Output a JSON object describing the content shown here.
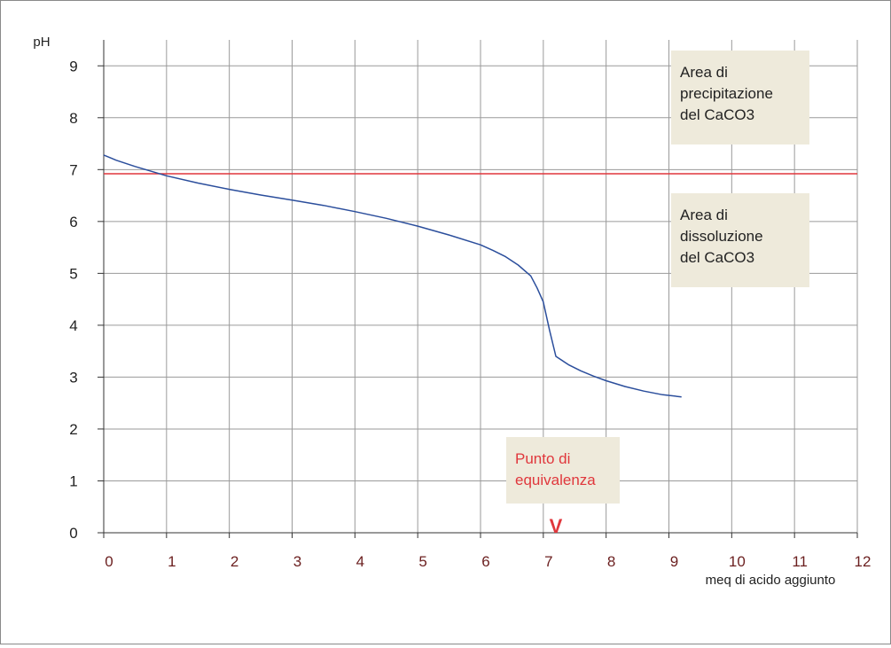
{
  "chart_data": {
    "type": "line",
    "title": "",
    "xlabel": "meq di acido aggiunto",
    "ylabel": "pH",
    "xlim": [
      0,
      12
    ],
    "ylim": [
      0,
      9.5
    ],
    "x_ticks": [
      "0",
      "1",
      "2",
      "3",
      "4",
      "5",
      "6",
      "7",
      "8",
      "9",
      "10",
      "11",
      "12"
    ],
    "y_ticks": [
      "0",
      "1",
      "2",
      "3",
      "4",
      "5",
      "6",
      "7",
      "8",
      "9"
    ],
    "grid": true,
    "colors": {
      "curve": "#2b4e9c",
      "threshold": "#e0373c",
      "grid": "#9a9a9a",
      "note_bg": "#eeeadb",
      "equivalence_text": "#e0373c"
    },
    "series": [
      {
        "x": [
          0,
          0.2,
          0.5,
          1,
          1.5,
          2,
          2.5,
          3,
          3.5,
          4,
          4.5,
          5,
          5.5,
          6,
          6.2,
          6.4,
          6.6,
          6.8,
          6.9,
          7.0,
          7.1,
          7.2,
          7.4,
          7.6,
          7.8,
          8.0,
          8.3,
          8.6,
          8.9,
          9.2
        ],
        "y": [
          7.28,
          7.18,
          7.06,
          6.88,
          6.74,
          6.62,
          6.51,
          6.41,
          6.31,
          6.19,
          6.06,
          5.91,
          5.74,
          5.55,
          5.44,
          5.32,
          5.16,
          4.95,
          4.72,
          4.45,
          3.9,
          3.4,
          3.24,
          3.12,
          3.02,
          2.93,
          2.82,
          2.73,
          2.66,
          2.62
        ]
      }
    ],
    "reference_line": {
      "y": 6.92
    },
    "annotations": {
      "precipitation": [
        "Area di",
        "precipitazione",
        "del CaCO3"
      ],
      "dissolution": [
        "Area di",
        "dissoluzione",
        "del CaCO3"
      ],
      "equivalence": [
        "Punto di",
        "equivalenza"
      ],
      "equivalence_marker": "V",
      "equivalence_x": 7.2
    }
  }
}
